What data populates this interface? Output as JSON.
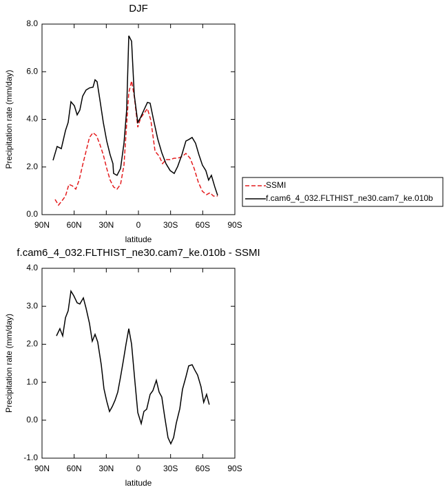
{
  "chart_data": [
    {
      "type": "line",
      "title": "DJF",
      "xlabel": "latitude",
      "ylabel": "Precipitation rate (mm/day)",
      "xlim": [
        90,
        -90
      ],
      "ylim": [
        0,
        8
      ],
      "xticks": [
        {
          "value": 90,
          "label": "90N"
        },
        {
          "value": 60,
          "label": "60N"
        },
        {
          "value": 30,
          "label": "30N"
        },
        0,
        {
          "value": -30,
          "label": "30S"
        },
        {
          "value": -60,
          "label": "60S"
        },
        {
          "value": -90,
          "label": "90S"
        }
      ],
      "yticks": [
        {
          "value": 0,
          "label": "0.0"
        },
        {
          "value": 2,
          "label": "2.0"
        },
        {
          "value": 4,
          "label": "4.0"
        },
        {
          "value": 6,
          "label": "6.0"
        },
        {
          "value": 8,
          "label": "8.0"
        }
      ],
      "legend": "right",
      "series": [
        {
          "name": "SSMI",
          "color": "#e41a1c",
          "line_style": "dashed",
          "x": [
            77.8,
            74.6,
            71.4,
            68.1,
            64.9,
            61.7,
            58.5,
            55.3,
            52.1,
            48.9,
            45.7,
            42.4,
            39.2,
            36,
            32.8,
            29.6,
            26.4,
            23.2,
            20,
            16.7,
            13.5,
            11,
            9,
            6.4,
            3.9,
            0.6,
            -2,
            -5.1,
            -8.4,
            -11.6,
            -15.5,
            -19.3,
            -22.5,
            -25.7,
            -29.6,
            -33.4,
            -36.6,
            -40.5,
            -44.3,
            -48.2,
            -52,
            -55.9,
            -59.7,
            -63.6,
            -66.8,
            -70,
            -73.9
          ],
          "values": [
            0.64,
            0.4,
            0.58,
            0.78,
            1.27,
            1.21,
            1.07,
            1.45,
            2.08,
            2.66,
            3.24,
            3.44,
            3.32,
            2.95,
            2.51,
            1.94,
            1.45,
            1.16,
            1.07,
            1.27,
            2.08,
            3.81,
            5.12,
            5.61,
            4.97,
            3.67,
            4.05,
            4.25,
            4.45,
            3.96,
            2.66,
            2.46,
            2.14,
            2.31,
            2.31,
            2.37,
            2.37,
            2.43,
            2.57,
            2.37,
            1.94,
            1.36,
            0.98,
            0.84,
            0.92,
            0.78,
            0.78
          ]
        },
        {
          "name": "f.cam6_4_032.FLTHIST_ne30.cam7_ke.010b",
          "color": "#000000",
          "line_style": "solid",
          "x": [
            79.7,
            75.9,
            72,
            68.1,
            65.6,
            63,
            59.8,
            57.2,
            54.7,
            52.1,
            48.9,
            45.7,
            42.4,
            40.5,
            38.6,
            36,
            32.8,
            29.6,
            26.4,
            23.8,
            23.2,
            20,
            16.7,
            13.5,
            11,
            9,
            6.4,
            3.9,
            0.6,
            -2,
            -5.1,
            -8.4,
            -10.9,
            -14.2,
            -18,
            -21.8,
            -25.7,
            -29.6,
            -33.4,
            -36.6,
            -40.5,
            -44.3,
            -46.9,
            -50.1,
            -53.3,
            -56.5,
            -59.7,
            -62.9,
            -65.5,
            -68.1,
            -71.3,
            -73.9
          ],
          "values": [
            2.28,
            2.86,
            2.77,
            3.53,
            3.87,
            4.74,
            4.57,
            4.19,
            4.39,
            4.97,
            5.23,
            5.32,
            5.35,
            5.66,
            5.58,
            4.83,
            3.87,
            3.09,
            2.51,
            2.14,
            1.73,
            1.65,
            1.94,
            3.0,
            4.39,
            7.51,
            7.28,
            5.03,
            3.87,
            4.08,
            4.39,
            4.71,
            4.68,
            3.96,
            3.18,
            2.6,
            2.14,
            1.85,
            1.73,
            2.02,
            2.51,
            3.09,
            3.15,
            3.24,
            3.0,
            2.51,
            2.08,
            1.85,
            1.45,
            1.65,
            1.16,
            0.81
          ]
        }
      ]
    },
    {
      "type": "line",
      "title": "f.cam6_4_032.FLTHIST_ne30.cam7_ke.010b - SSMI",
      "xlabel": "latitude",
      "ylabel": "Precipitation rate (mm/day)",
      "xlim": [
        90,
        -90
      ],
      "ylim": [
        -1,
        4
      ],
      "xticks": [
        {
          "value": 90,
          "label": "90N"
        },
        {
          "value": 60,
          "label": "60N"
        },
        {
          "value": 30,
          "label": "30N"
        },
        0,
        {
          "value": -30,
          "label": "30S"
        },
        {
          "value": -60,
          "label": "60S"
        },
        {
          "value": -90,
          "label": "90S"
        }
      ],
      "yticks": [
        {
          "value": -1,
          "label": "-1.0"
        },
        {
          "value": 0,
          "label": "0.0"
        },
        {
          "value": 1,
          "label": "1.0"
        },
        {
          "value": 2,
          "label": "2.0"
        },
        {
          "value": 3,
          "label": "3.0"
        },
        {
          "value": 4,
          "label": "4.0"
        }
      ],
      "series": [
        {
          "color": "#000000",
          "line_style": "solid",
          "x": [
            76.5,
            73.3,
            70.7,
            68.1,
            65.6,
            63,
            60.4,
            57.2,
            54.7,
            51.4,
            48.9,
            45.7,
            43.1,
            40.5,
            38,
            34.7,
            32.2,
            29.6,
            27,
            24.4,
            21.9,
            19.3,
            16.7,
            14.2,
            11.6,
            9,
            6.4,
            3.2,
            0.6,
            -2.6,
            -5.1,
            -7.7,
            -10.9,
            -13.5,
            -16.7,
            -19.3,
            -21.8,
            -24.4,
            -27.6,
            -30.2,
            -32.8,
            -35.3,
            -38.6,
            -41.1,
            -44.3,
            -46.9,
            -50.1,
            -52.6,
            -55.2,
            -58.4,
            -60.9,
            -63.6,
            -66.1
          ],
          "values": [
            2.22,
            2.41,
            2.22,
            2.7,
            2.88,
            3.4,
            3.28,
            3.09,
            3.06,
            3.22,
            2.95,
            2.55,
            2.08,
            2.26,
            2.06,
            1.46,
            0.83,
            0.5,
            0.23,
            0.36,
            0.52,
            0.74,
            1.14,
            1.55,
            2.0,
            2.41,
            2.0,
            0.99,
            0.2,
            -0.09,
            0.23,
            0.29,
            0.68,
            0.78,
            1.05,
            0.74,
            0.61,
            0.11,
            -0.46,
            -0.62,
            -0.46,
            -0.08,
            0.3,
            0.81,
            1.14,
            1.43,
            1.46,
            1.32,
            1.19,
            0.88,
            0.47,
            0.68,
            0.41
          ]
        }
      ]
    }
  ]
}
